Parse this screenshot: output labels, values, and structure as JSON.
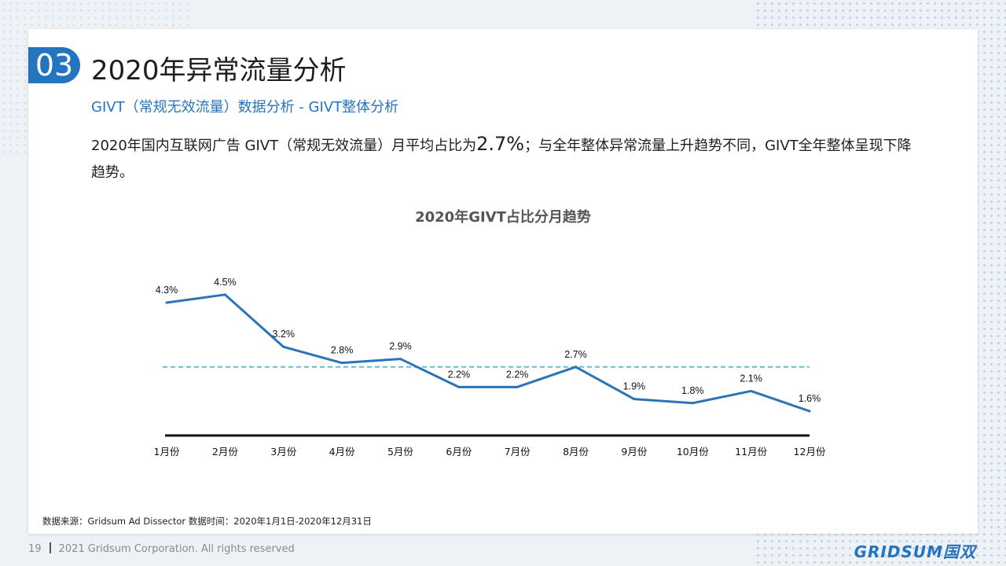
{
  "slide": {
    "section_number": "03",
    "title": "2020年异常流量分析",
    "subtitle": "GIVT（常规无效流量）数据分析 - GIVT整体分析",
    "summary_pre": "2020年国内互联网广告 GIVT（常规无效流量）月平均占比为",
    "summary_highlight": "2.7%",
    "summary_post": "；与全年整体异常流量上升趋势不同，GIVT全年整体呈现下降趋势。",
    "source": "数据来源：Gridsum Ad Dissector 数据时间：2020年1月1日-2020年12月31日",
    "page_number": "19",
    "copyright": "2021 Gridsum Corporation. All rights reserved",
    "logo_text": "GRIDSUM国双"
  },
  "chart_data": {
    "type": "line",
    "title": "2020年GIVT占比分月趋势",
    "categories": [
      "1月份",
      "2月份",
      "3月份",
      "4月份",
      "5月份",
      "6月份",
      "7月份",
      "8月份",
      "9月份",
      "10月份",
      "11月份",
      "12月份"
    ],
    "values": [
      4.3,
      4.5,
      3.2,
      2.8,
      2.9,
      2.2,
      2.2,
      2.7,
      1.9,
      1.8,
      2.1,
      1.6
    ],
    "value_labels": [
      "4.3%",
      "4.5%",
      "3.2%",
      "2.8%",
      "2.9%",
      "2.2%",
      "2.2%",
      "2.7%",
      "1.9%",
      "1.8%",
      "2.1%",
      "1.6%"
    ],
    "average_line": 2.7,
    "ylim": [
      0,
      5
    ],
    "xlabel": "",
    "ylabel": "",
    "grid": false,
    "legend": "none",
    "colors": {
      "line": "#2a74b8",
      "average": "#5fc2cf",
      "axis": "#111111"
    }
  }
}
